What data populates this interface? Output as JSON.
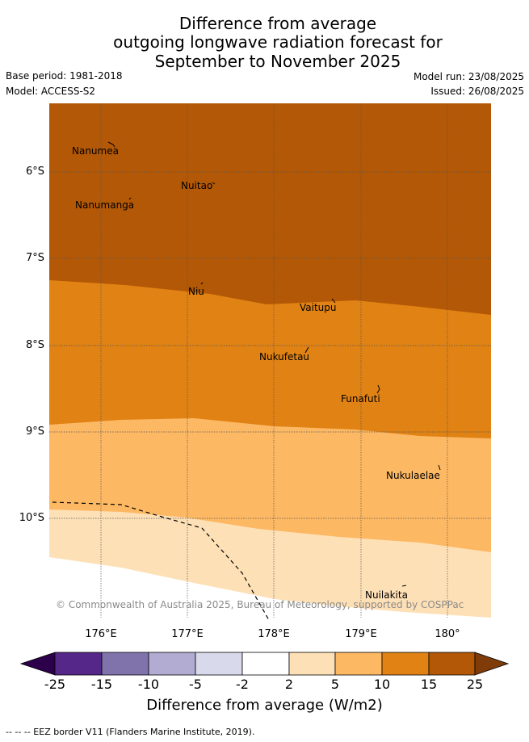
{
  "header": {
    "title_lines": [
      "Difference from average",
      "outgoing longwave radiation forecast for",
      "September to November 2025"
    ],
    "base_period": "Base period: 1981-2018",
    "model": "Model: ACCESS-S2",
    "model_run": "Model run: 23/08/2025",
    "issued": "Issued: 26/08/2025"
  },
  "map": {
    "lat_labels": [
      "6°S",
      "7°S",
      "8°S",
      "9°S",
      "10°S"
    ],
    "lon_labels": [
      "176°E",
      "177°E",
      "178°E",
      "179°E",
      "180°"
    ],
    "places": [
      "Nanumea",
      "Nuitao",
      "Nanumanga",
      "Niu",
      "Vaitupu",
      "Nukufetau",
      "Funafuti",
      "Nukulaelae",
      "Nuilakita"
    ],
    "copyright": "© Commonwealth of Australia 2025, Bureau of Meteorology, supported by COSPPac",
    "colors": {
      "band_15_25": "#b35806",
      "band_10_15": "#e08214",
      "band_5_10": "#fdb863",
      "band_2_5": "#fee0b6",
      "grid": "#555555"
    }
  },
  "colorbar": {
    "ticks": [
      "-25",
      "-15",
      "-10",
      "-5",
      "-2",
      "2",
      "5",
      "10",
      "15",
      "25"
    ],
    "colors": [
      "#2d004b",
      "#542788",
      "#8073ac",
      "#b2abd2",
      "#d8daeb",
      "#ffffff",
      "#fee0b6",
      "#fdb863",
      "#e08214",
      "#b35806",
      "#7f3b08"
    ],
    "label": "Difference from average (W/m2)"
  },
  "footer": {
    "legend": "--  --  -- EEZ border V11 (Flanders Marine Institute, 2019)."
  }
}
